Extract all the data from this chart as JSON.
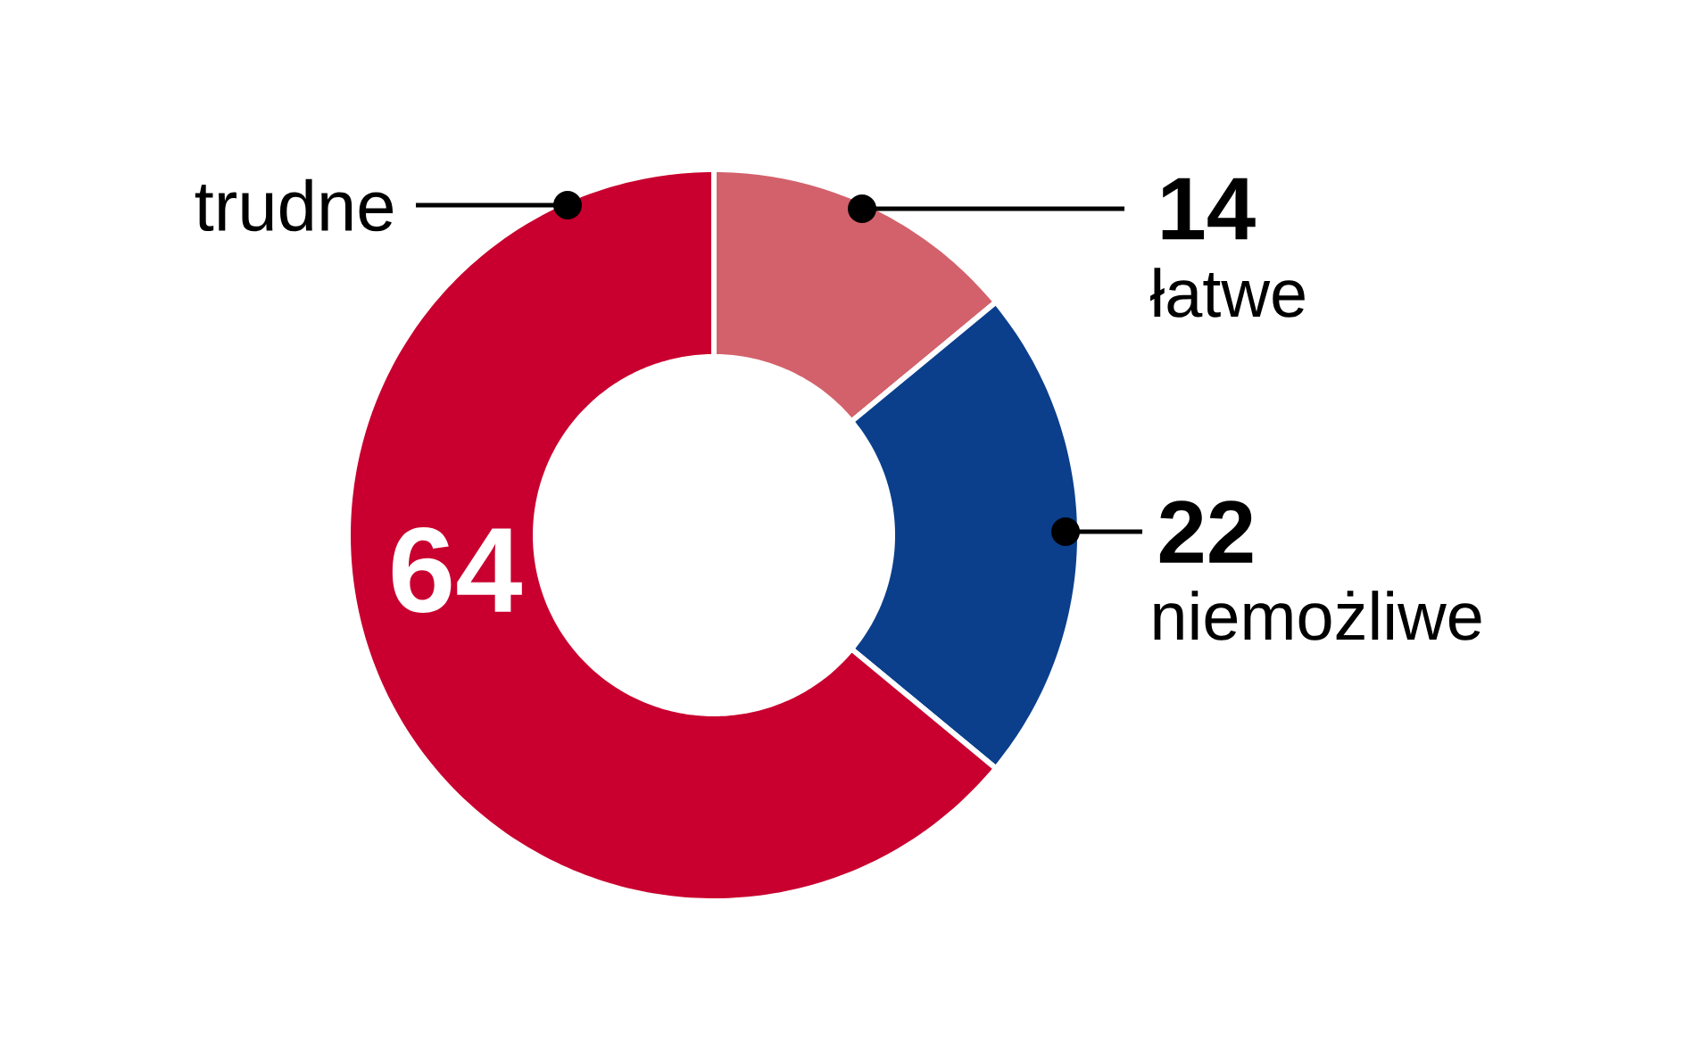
{
  "chart_data": {
    "type": "donut",
    "categories": [
      "łatwe",
      "niemożliwe",
      "trudne"
    ],
    "values": [
      14,
      22,
      64
    ],
    "colors": [
      "#d3616b",
      "#0b3f8c",
      "#c9002f"
    ],
    "data_labels": true
  }
}
